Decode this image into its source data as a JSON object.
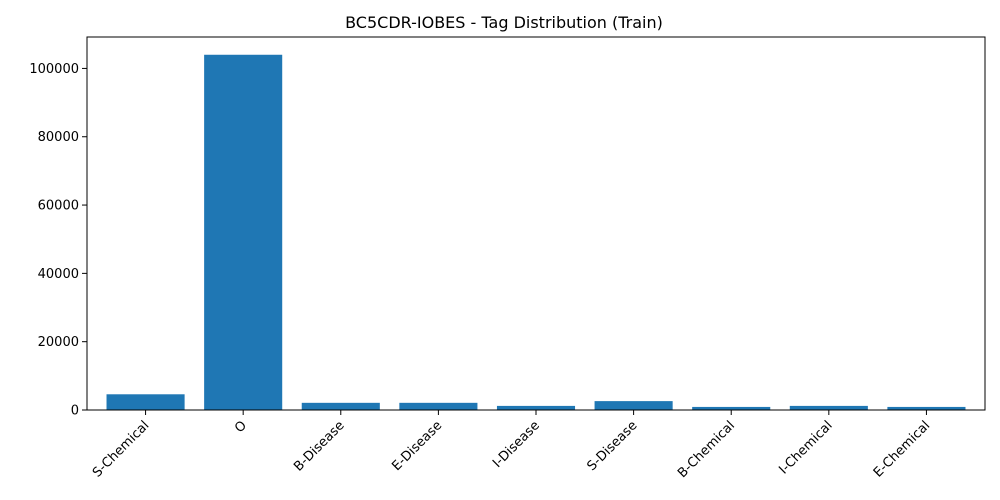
{
  "chart_data": {
    "type": "bar",
    "title": "BC5CDR-IOBES - Tag Distribution (Train)",
    "xlabel": "",
    "ylabel": "",
    "categories": [
      "S-Chemical",
      "O",
      "B-Disease",
      "E-Disease",
      "I-Disease",
      "S-Disease",
      "B-Chemical",
      "I-Chemical",
      "E-Chemical"
    ],
    "values": [
      4600,
      104000,
      2100,
      2100,
      1200,
      2600,
      900,
      1200,
      900
    ],
    "ylim": [
      0,
      109200
    ],
    "yticks": [
      0,
      20000,
      40000,
      60000,
      80000,
      100000
    ],
    "bar_color": "#1f77b4",
    "grid": false,
    "legend": "none"
  }
}
